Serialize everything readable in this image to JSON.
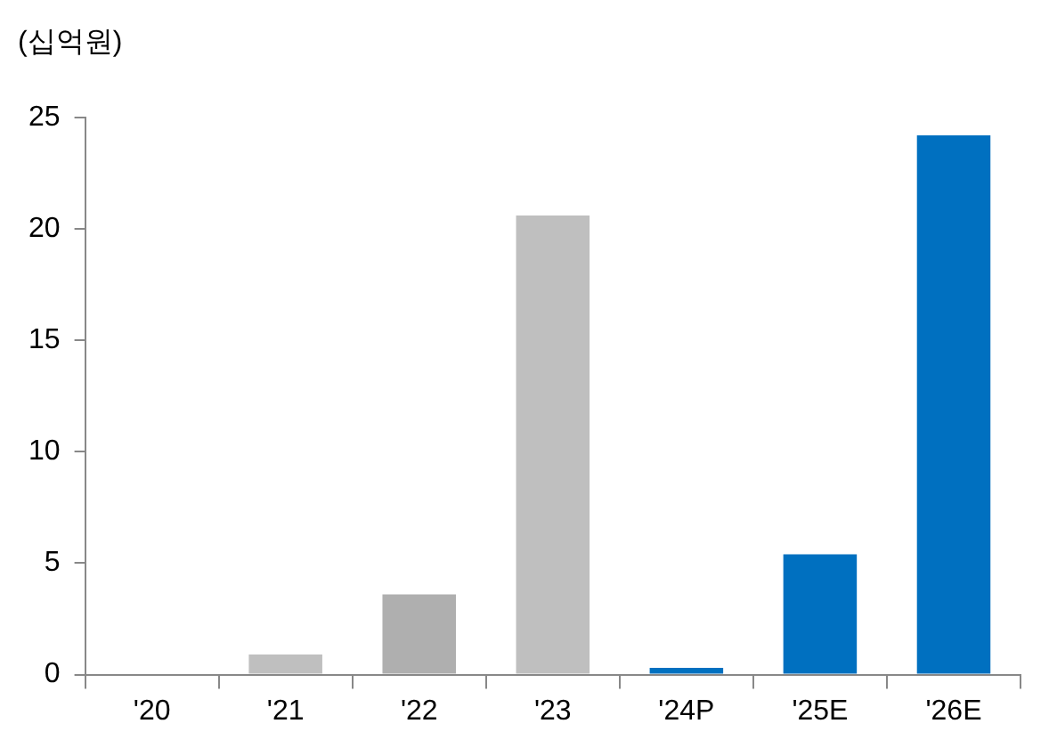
{
  "chart_data": {
    "type": "bar",
    "ylabel": "(십억원)",
    "categories": [
      "'20",
      "'21",
      "'22",
      "'23",
      "'24P",
      "'25E",
      "'26E"
    ],
    "values": [
      0,
      0.9,
      3.6,
      20.6,
      0.3,
      5.4,
      24.2
    ],
    "colors": [
      "#bfbfbf",
      "#bfbfbf",
      "#afafaf",
      "#bfbfbf",
      "#0070c0",
      "#0070c0",
      "#0070c0"
    ],
    "ylim": [
      0,
      25
    ],
    "yticks": [
      0,
      5,
      10,
      15,
      20,
      25
    ],
    "grid": false
  }
}
